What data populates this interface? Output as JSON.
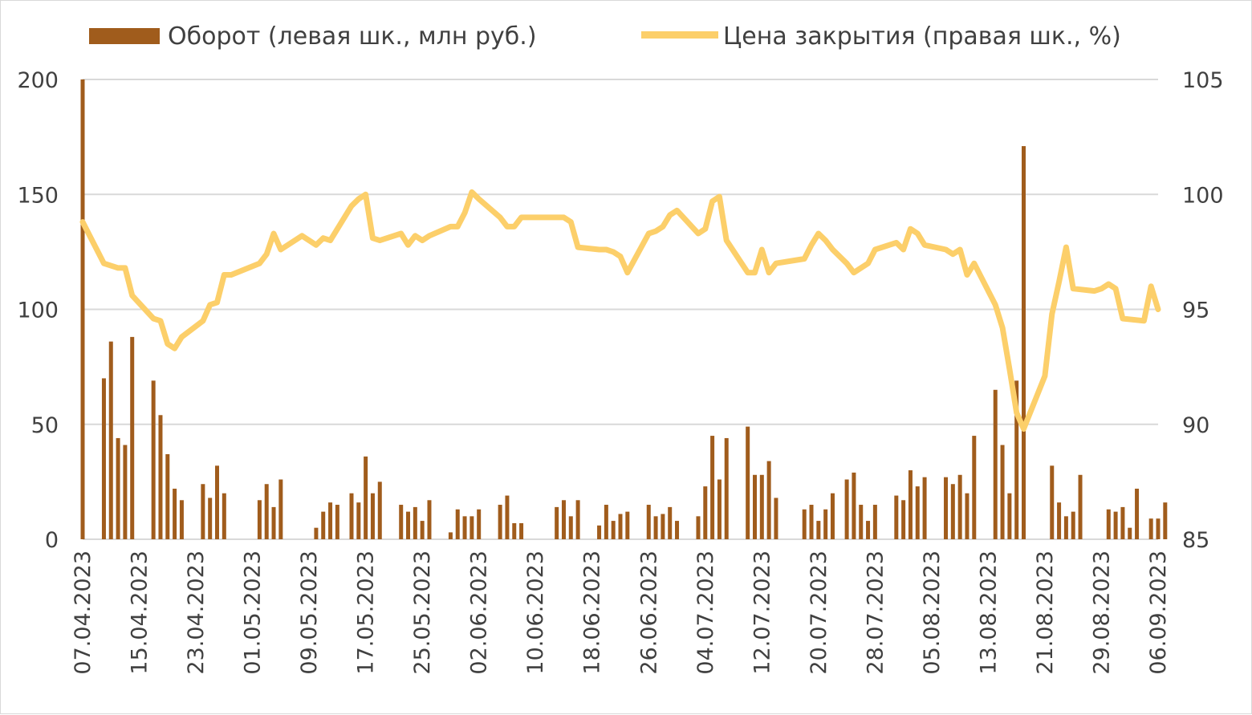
{
  "chart_data": {
    "type": "bar+line",
    "title": "",
    "legend_position": "top",
    "grid": true,
    "colors": {
      "bars": "#a05c1c",
      "line": "#fccf6a",
      "grid": "#d9d9d9",
      "text": "#404040"
    },
    "series": [
      {
        "name": "Оборот (левая шк., млн руб.)",
        "type": "bar",
        "axis": "left"
      },
      {
        "name": "Цена закрытия (правая шк., %)",
        "type": "line",
        "axis": "right"
      }
    ],
    "left_axis": {
      "ylim": [
        0,
        200
      ],
      "ticks": [
        "0",
        "50",
        "100",
        "150",
        "200"
      ]
    },
    "right_axis": {
      "ylim": [
        85,
        105
      ],
      "ticks": [
        "85",
        "90",
        "95",
        "100",
        "105"
      ]
    },
    "x_range": [
      "07.04.2023",
      "06.09.2023"
    ],
    "x_ticks": [
      "07.04.2023",
      "15.04.2023",
      "23.04.2023",
      "01.05.2023",
      "09.05.2023",
      "17.05.2023",
      "25.05.2023",
      "02.06.2023",
      "10.06.2023",
      "18.06.2023",
      "26.06.2023",
      "04.07.2023",
      "12.07.2023",
      "20.07.2023",
      "28.07.2023",
      "05.08.2023",
      "13.08.2023",
      "21.08.2023",
      "29.08.2023",
      "06.09.2023"
    ],
    "turnover": [
      [
        "07.04.2023",
        200
      ],
      [
        "10.04.2023",
        70
      ],
      [
        "11.04.2023",
        86
      ],
      [
        "12.04.2023",
        44
      ],
      [
        "13.04.2023",
        41
      ],
      [
        "14.04.2023",
        88
      ],
      [
        "17.04.2023",
        69
      ],
      [
        "18.04.2023",
        54
      ],
      [
        "19.04.2023",
        37
      ],
      [
        "20.04.2023",
        22
      ],
      [
        "21.04.2023",
        17
      ],
      [
        "24.04.2023",
        24
      ],
      [
        "25.04.2023",
        18
      ],
      [
        "26.04.2023",
        32
      ],
      [
        "27.04.2023",
        20
      ],
      [
        "02.05.2023",
        17
      ],
      [
        "03.05.2023",
        24
      ],
      [
        "04.05.2023",
        14
      ],
      [
        "05.05.2023",
        26
      ],
      [
        "10.05.2023",
        5
      ],
      [
        "11.05.2023",
        12
      ],
      [
        "12.05.2023",
        16
      ],
      [
        "13.05.2023",
        15
      ],
      [
        "15.05.2023",
        20
      ],
      [
        "16.05.2023",
        16
      ],
      [
        "17.05.2023",
        36
      ],
      [
        "18.05.2023",
        20
      ],
      [
        "19.05.2023",
        25
      ],
      [
        "22.05.2023",
        15
      ],
      [
        "23.05.2023",
        12
      ],
      [
        "24.05.2023",
        14
      ],
      [
        "25.05.2023",
        8
      ],
      [
        "26.05.2023",
        17
      ],
      [
        "29.05.2023",
        3
      ],
      [
        "30.05.2023",
        13
      ],
      [
        "31.05.2023",
        10
      ],
      [
        "01.06.2023",
        10
      ],
      [
        "02.06.2023",
        13
      ],
      [
        "05.06.2023",
        15
      ],
      [
        "06.06.2023",
        19
      ],
      [
        "07.06.2023",
        7
      ],
      [
        "08.06.2023",
        7
      ],
      [
        "13.06.2023",
        14
      ],
      [
        "14.06.2023",
        17
      ],
      [
        "15.06.2023",
        10
      ],
      [
        "16.06.2023",
        17
      ],
      [
        "19.06.2023",
        6
      ],
      [
        "20.06.2023",
        15
      ],
      [
        "21.06.2023",
        8
      ],
      [
        "22.06.2023",
        11
      ],
      [
        "23.06.2023",
        12
      ],
      [
        "26.06.2023",
        15
      ],
      [
        "27.06.2023",
        10
      ],
      [
        "28.06.2023",
        11
      ],
      [
        "29.06.2023",
        14
      ],
      [
        "30.06.2023",
        8
      ],
      [
        "03.07.2023",
        10
      ],
      [
        "04.07.2023",
        23
      ],
      [
        "05.07.2023",
        45
      ],
      [
        "06.07.2023",
        26
      ],
      [
        "07.07.2023",
        44
      ],
      [
        "10.07.2023",
        49
      ],
      [
        "11.07.2023",
        28
      ],
      [
        "12.07.2023",
        28
      ],
      [
        "13.07.2023",
        34
      ],
      [
        "14.07.2023",
        18
      ],
      [
        "18.07.2023",
        13
      ],
      [
        "19.07.2023",
        15
      ],
      [
        "20.07.2023",
        8
      ],
      [
        "21.07.2023",
        13
      ],
      [
        "22.07.2023",
        20
      ],
      [
        "24.07.2023",
        26
      ],
      [
        "25.07.2023",
        29
      ],
      [
        "26.07.2023",
        15
      ],
      [
        "27.07.2023",
        8
      ],
      [
        "28.07.2023",
        15
      ],
      [
        "31.07.2023",
        19
      ],
      [
        "01.08.2023",
        17
      ],
      [
        "02.08.2023",
        30
      ],
      [
        "03.08.2023",
        23
      ],
      [
        "04.08.2023",
        27
      ],
      [
        "07.08.2023",
        27
      ],
      [
        "08.08.2023",
        24
      ],
      [
        "09.08.2023",
        28
      ],
      [
        "10.08.2023",
        20
      ],
      [
        "11.08.2023",
        45
      ],
      [
        "14.08.2023",
        65
      ],
      [
        "15.08.2023",
        41
      ],
      [
        "16.08.2023",
        20
      ],
      [
        "17.08.2023",
        69
      ],
      [
        "18.08.2023",
        171
      ],
      [
        "22.08.2023",
        32
      ],
      [
        "23.08.2023",
        16
      ],
      [
        "24.08.2023",
        10
      ],
      [
        "25.08.2023",
        12
      ],
      [
        "26.08.2023",
        28
      ],
      [
        "30.08.2023",
        13
      ],
      [
        "31.08.2023",
        12
      ],
      [
        "01.09.2023",
        14
      ],
      [
        "02.09.2023",
        5
      ],
      [
        "03.09.2023",
        22
      ],
      [
        "05.09.2023",
        9
      ],
      [
        "06.09.2023",
        9
      ],
      [
        "07.09.2023",
        16
      ]
    ],
    "close_price": [
      [
        "07.04.2023",
        98.8
      ],
      [
        "10.04.2023",
        97.0
      ],
      [
        "12.04.2023",
        96.8
      ],
      [
        "13.04.2023",
        96.8
      ],
      [
        "14.04.2023",
        95.6
      ],
      [
        "17.04.2023",
        94.6
      ],
      [
        "18.04.2023",
        94.5
      ],
      [
        "19.04.2023",
        93.5
      ],
      [
        "20.04.2023",
        93.3
      ],
      [
        "21.04.2023",
        93.8
      ],
      [
        "24.04.2023",
        94.5
      ],
      [
        "25.04.2023",
        95.2
      ],
      [
        "26.04.2023",
        95.3
      ],
      [
        "27.04.2023",
        96.5
      ],
      [
        "28.04.2023",
        96.5
      ],
      [
        "02.05.2023",
        97.0
      ],
      [
        "03.05.2023",
        97.4
      ],
      [
        "04.05.2023",
        98.3
      ],
      [
        "05.05.2023",
        97.6
      ],
      [
        "08.05.2023",
        98.2
      ],
      [
        "09.05.2023",
        98.0
      ],
      [
        "10.05.2023",
        97.8
      ],
      [
        "11.05.2023",
        98.1
      ],
      [
        "12.05.2023",
        98.0
      ],
      [
        "15.05.2023",
        99.5
      ],
      [
        "16.05.2023",
        99.8
      ],
      [
        "17.05.2023",
        100.0
      ],
      [
        "18.05.2023",
        98.1
      ],
      [
        "19.05.2023",
        98.0
      ],
      [
        "22.05.2023",
        98.3
      ],
      [
        "23.05.2023",
        97.8
      ],
      [
        "24.05.2023",
        98.2
      ],
      [
        "25.05.2023",
        98.0
      ],
      [
        "26.05.2023",
        98.2
      ],
      [
        "29.05.2023",
        98.6
      ],
      [
        "30.05.2023",
        98.6
      ],
      [
        "31.05.2023",
        99.2
      ],
      [
        "01.06.2023",
        100.1
      ],
      [
        "02.06.2023",
        99.8
      ],
      [
        "05.06.2023",
        99.0
      ],
      [
        "06.06.2023",
        98.6
      ],
      [
        "07.06.2023",
        98.6
      ],
      [
        "08.06.2023",
        99.0
      ],
      [
        "09.06.2023",
        99.0
      ],
      [
        "13.06.2023",
        99.0
      ],
      [
        "14.06.2023",
        99.0
      ],
      [
        "15.06.2023",
        98.8
      ],
      [
        "16.06.2023",
        97.7
      ],
      [
        "19.06.2023",
        97.6
      ],
      [
        "20.06.2023",
        97.6
      ],
      [
        "21.06.2023",
        97.5
      ],
      [
        "22.06.2023",
        97.3
      ],
      [
        "23.06.2023",
        96.6
      ],
      [
        "26.06.2023",
        98.3
      ],
      [
        "27.06.2023",
        98.4
      ],
      [
        "28.06.2023",
        98.6
      ],
      [
        "29.06.2023",
        99.1
      ],
      [
        "30.06.2023",
        99.3
      ],
      [
        "03.07.2023",
        98.3
      ],
      [
        "04.07.2023",
        98.5
      ],
      [
        "05.07.2023",
        99.7
      ],
      [
        "06.07.2023",
        99.9
      ],
      [
        "07.07.2023",
        98.0
      ],
      [
        "10.07.2023",
        96.6
      ],
      [
        "11.07.2023",
        96.6
      ],
      [
        "12.07.2023",
        97.6
      ],
      [
        "13.07.2023",
        96.6
      ],
      [
        "14.07.2023",
        97.0
      ],
      [
        "18.07.2023",
        97.2
      ],
      [
        "19.07.2023",
        97.8
      ],
      [
        "20.07.2023",
        98.3
      ],
      [
        "21.07.2023",
        98.0
      ],
      [
        "22.07.2023",
        97.6
      ],
      [
        "24.07.2023",
        97.0
      ],
      [
        "25.07.2023",
        96.6
      ],
      [
        "26.07.2023",
        96.8
      ],
      [
        "27.07.2023",
        97.0
      ],
      [
        "28.07.2023",
        97.6
      ],
      [
        "31.07.2023",
        97.9
      ],
      [
        "01.08.2023",
        97.6
      ],
      [
        "02.08.2023",
        98.5
      ],
      [
        "03.08.2023",
        98.3
      ],
      [
        "04.08.2023",
        97.8
      ],
      [
        "07.08.2023",
        97.6
      ],
      [
        "08.08.2023",
        97.4
      ],
      [
        "09.08.2023",
        97.6
      ],
      [
        "10.08.2023",
        96.5
      ],
      [
        "11.08.2023",
        97.0
      ],
      [
        "14.08.2023",
        95.2
      ],
      [
        "15.08.2023",
        94.2
      ],
      [
        "16.08.2023",
        92.4
      ],
      [
        "17.08.2023",
        90.5
      ],
      [
        "18.08.2023",
        89.8
      ],
      [
        "21.08.2023",
        92.1
      ],
      [
        "22.08.2023",
        94.8
      ],
      [
        "23.08.2023",
        96.2
      ],
      [
        "24.08.2023",
        97.7
      ],
      [
        "25.08.2023",
        95.9
      ],
      [
        "28.08.2023",
        95.8
      ],
      [
        "29.08.2023",
        95.9
      ],
      [
        "30.08.2023",
        96.1
      ],
      [
        "31.08.2023",
        95.9
      ],
      [
        "01.09.2023",
        94.6
      ],
      [
        "04.09.2023",
        94.5
      ],
      [
        "05.09.2023",
        96.0
      ],
      [
        "06.09.2023",
        95.0
      ]
    ]
  }
}
